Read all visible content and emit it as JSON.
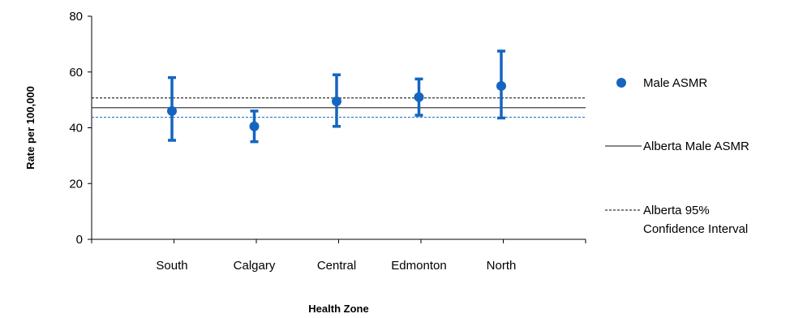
{
  "chart_data": {
    "type": "scatter",
    "title": "",
    "xlabel": "Health Zone",
    "ylabel": "Rate per 100,000",
    "ylim": [
      0,
      80
    ],
    "yticks": [
      0,
      20,
      40,
      60,
      80
    ],
    "categories": [
      "South",
      "Calgary",
      "Central",
      "Edmonton",
      "North"
    ],
    "series": [
      {
        "name": "Male ASMR",
        "values": [
          46,
          40.5,
          49.5,
          51,
          55
        ],
        "lower": [
          35.5,
          35,
          40.5,
          44.5,
          43.5
        ],
        "upper": [
          58,
          46,
          59,
          57.5,
          67.5
        ]
      }
    ],
    "reference_lines": {
      "alberta_value": 47.2,
      "alberta_ci_upper": 50.7,
      "alberta_ci_lower": 43.8
    },
    "legend": {
      "placement": "right",
      "items": [
        {
          "label_lines": [
            "Male ASMR"
          ]
        },
        {
          "label_lines": [
            "Alberta Male ASMR"
          ]
        },
        {
          "label_lines": [
            "Alberta 95%",
            "Confidence Interval"
          ]
        }
      ]
    },
    "grid": false,
    "colors": {
      "series": "#1565c0",
      "alberta_line": "#404040",
      "ci_upper": "#000000",
      "ci_lower": "#1e6fc7",
      "axis": "#000000"
    }
  }
}
